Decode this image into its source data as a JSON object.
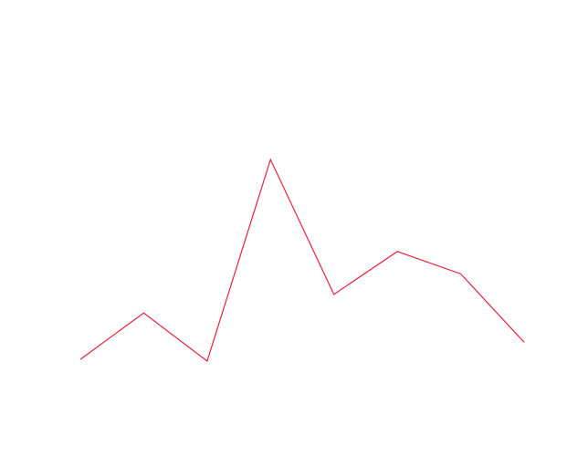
{
  "chart_data": {
    "type": "line",
    "title": "",
    "xlabel": "",
    "ylabel": "",
    "grid": false,
    "axes_visible": false,
    "x": [
      0,
      1,
      2,
      3,
      4,
      5,
      6,
      7
    ],
    "series": [
      {
        "color": "#e8213c",
        "values": [
          0.72,
          4.45,
          0.58,
          16.8,
          5.95,
          9.4,
          7.6,
          2.1
        ]
      }
    ],
    "xlim": [
      0,
      7
    ],
    "ylim": [
      0.58,
      16.8
    ]
  }
}
